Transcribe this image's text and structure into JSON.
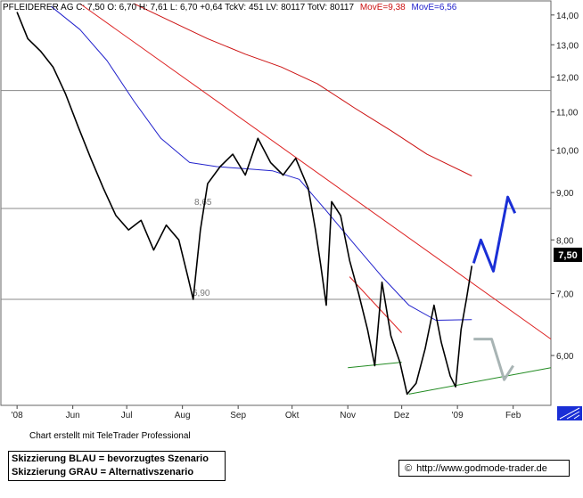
{
  "header": {
    "quote": "PFLEIDERER AG C: 7,50 O: 6,70 H: 7,61 L: 6,70 +0,64 TckV: 451 LV: 80117 TotV: 80117",
    "mov_e_red": "MovE=9,38",
    "mov_e_blue": "MovE=6,56"
  },
  "chart_data": {
    "type": "line",
    "title": "PFLEIDERER AG",
    "x_ticks": [
      "'08",
      "Jun",
      "Jul",
      "Aug",
      "Sep",
      "Okt",
      "Nov",
      "Dez",
      "'09",
      "Feb"
    ],
    "y_ticks": [
      "14,00",
      "13,00",
      "12,00",
      "11,00",
      "10,00",
      "9,00",
      "8,00",
      "7,00",
      "6,00"
    ],
    "y_scale": "log",
    "ylim": [
      5.3,
      14.5
    ],
    "last_price_label": "7,50",
    "levels": [
      {
        "value": 11.6,
        "label": ""
      },
      {
        "value": 8.65,
        "label": "8,65"
      },
      {
        "value": 6.9,
        "label": "6,90"
      }
    ],
    "price_path": [
      {
        "t": "2008-05-01",
        "v": 14.1
      },
      {
        "t": "2008-05-07",
        "v": 13.2
      },
      {
        "t": "2008-05-14",
        "v": 12.8
      },
      {
        "t": "2008-05-21",
        "v": 12.3
      },
      {
        "t": "2008-05-28",
        "v": 11.5
      },
      {
        "t": "2008-06-04",
        "v": 10.6
      },
      {
        "t": "2008-06-11",
        "v": 9.8
      },
      {
        "t": "2008-06-18",
        "v": 9.1
      },
      {
        "t": "2008-06-25",
        "v": 8.5
      },
      {
        "t": "2008-07-02",
        "v": 8.2
      },
      {
        "t": "2008-07-09",
        "v": 8.4
      },
      {
        "t": "2008-07-16",
        "v": 7.8
      },
      {
        "t": "2008-07-23",
        "v": 8.3
      },
      {
        "t": "2008-07-30",
        "v": 8.0
      },
      {
        "t": "2008-08-04",
        "v": 7.3
      },
      {
        "t": "2008-08-07",
        "v": 6.9
      },
      {
        "t": "2008-08-11",
        "v": 8.2
      },
      {
        "t": "2008-08-15",
        "v": 9.2
      },
      {
        "t": "2008-08-22",
        "v": 9.6
      },
      {
        "t": "2008-08-29",
        "v": 9.9
      },
      {
        "t": "2008-09-05",
        "v": 9.4
      },
      {
        "t": "2008-09-12",
        "v": 10.3
      },
      {
        "t": "2008-09-19",
        "v": 9.7
      },
      {
        "t": "2008-09-26",
        "v": 9.4
      },
      {
        "t": "2008-10-03",
        "v": 9.8
      },
      {
        "t": "2008-10-10",
        "v": 9.1
      },
      {
        "t": "2008-10-14",
        "v": 8.2
      },
      {
        "t": "2008-10-17",
        "v": 7.5
      },
      {
        "t": "2008-10-20",
        "v": 6.8
      },
      {
        "t": "2008-10-23",
        "v": 8.8
      },
      {
        "t": "2008-10-28",
        "v": 8.5
      },
      {
        "t": "2008-11-02",
        "v": 7.6
      },
      {
        "t": "2008-11-07",
        "v": 7.0
      },
      {
        "t": "2008-11-12",
        "v": 6.4
      },
      {
        "t": "2008-11-16",
        "v": 5.85
      },
      {
        "t": "2008-11-20",
        "v": 7.2
      },
      {
        "t": "2008-11-25",
        "v": 6.3
      },
      {
        "t": "2008-11-30",
        "v": 5.9
      },
      {
        "t": "2008-12-04",
        "v": 5.45
      },
      {
        "t": "2008-12-09",
        "v": 5.6
      },
      {
        "t": "2008-12-14",
        "v": 6.1
      },
      {
        "t": "2008-12-19",
        "v": 6.8
      },
      {
        "t": "2008-12-23",
        "v": 6.2
      },
      {
        "t": "2008-12-28",
        "v": 5.7
      },
      {
        "t": "2008-12-31",
        "v": 5.55
      },
      {
        "t": "2009-01-03",
        "v": 6.4
      },
      {
        "t": "2009-01-06",
        "v": 6.9
      },
      {
        "t": "2009-01-09",
        "v": 7.5
      }
    ],
    "ma_fast_blue": [
      {
        "t": "2008-05-20",
        "v": 14.3
      },
      {
        "t": "2008-06-05",
        "v": 13.5
      },
      {
        "t": "2008-06-20",
        "v": 12.5
      },
      {
        "t": "2008-07-05",
        "v": 11.3
      },
      {
        "t": "2008-07-20",
        "v": 10.3
      },
      {
        "t": "2008-08-05",
        "v": 9.7
      },
      {
        "t": "2008-08-20",
        "v": 9.6
      },
      {
        "t": "2008-09-05",
        "v": 9.55
      },
      {
        "t": "2008-09-20",
        "v": 9.5
      },
      {
        "t": "2008-10-05",
        "v": 9.3
      },
      {
        "t": "2008-10-20",
        "v": 8.6
      },
      {
        "t": "2008-11-05",
        "v": 7.9
      },
      {
        "t": "2008-11-20",
        "v": 7.3
      },
      {
        "t": "2008-12-05",
        "v": 6.8
      },
      {
        "t": "2008-12-20",
        "v": 6.55
      },
      {
        "t": "2009-01-09",
        "v": 6.56
      }
    ],
    "ma_slow_red": [
      {
        "t": "2008-07-05",
        "v": 14.4
      },
      {
        "t": "2008-07-25",
        "v": 13.8
      },
      {
        "t": "2008-08-15",
        "v": 13.2
      },
      {
        "t": "2008-09-05",
        "v": 12.7
      },
      {
        "t": "2008-09-25",
        "v": 12.3
      },
      {
        "t": "2008-10-15",
        "v": 11.8
      },
      {
        "t": "2008-11-05",
        "v": 11.1
      },
      {
        "t": "2008-11-25",
        "v": 10.5
      },
      {
        "t": "2008-12-15",
        "v": 9.9
      },
      {
        "t": "2009-01-09",
        "v": 9.38
      }
    ],
    "trendline_down_red": [
      {
        "t": "2008-06-05",
        "v": 14.4
      },
      {
        "t": "2009-02-22",
        "v": 6.25
      }
    ],
    "trendline_short_red": [
      {
        "t": "2008-11-02",
        "v": 7.3
      },
      {
        "t": "2008-12-01",
        "v": 6.35
      }
    ],
    "trendline_up_green": [
      {
        "t": "2008-11-01",
        "v": 5.82
      },
      {
        "t": "2008-12-01",
        "v": 5.9
      }
    ],
    "trendline_up_green_2": [
      {
        "t": "2008-12-05",
        "v": 5.45
      },
      {
        "t": "2009-02-22",
        "v": 5.82
      }
    ],
    "scenario_blue": [
      {
        "t": "2009-01-10",
        "v": 7.55
      },
      {
        "t": "2009-01-14",
        "v": 8.0
      },
      {
        "t": "2009-01-21",
        "v": 7.4
      },
      {
        "t": "2009-01-29",
        "v": 8.9
      },
      {
        "t": "2009-02-02",
        "v": 8.55
      }
    ],
    "scenario_grey": [
      {
        "t": "2009-01-10",
        "v": 6.25
      },
      {
        "t": "2009-01-20",
        "v": 6.25
      },
      {
        "t": "2009-01-27",
        "v": 5.65
      },
      {
        "t": "2009-02-01",
        "v": 5.85
      }
    ]
  },
  "footer": {
    "credit": "Chart erstellt mit TeleTrader Professional",
    "legend_blue": "Skizzierung BLAU = bevorzugtes Szenario",
    "legend_grey": "Skizzierung GRAU = Alternativszenario",
    "url": "http://www.godmode-trader.de",
    "copyright_symbol": "©"
  },
  "colors": {
    "price": "#000000",
    "ma_fast": "#2222cc",
    "ma_slow": "#cc1111",
    "trend_red": "#dd2222",
    "trend_green": "#228b22",
    "scenario_blue": "#1a2fd6",
    "scenario_grey": "#a8b4b4",
    "level_line": "#888888"
  }
}
